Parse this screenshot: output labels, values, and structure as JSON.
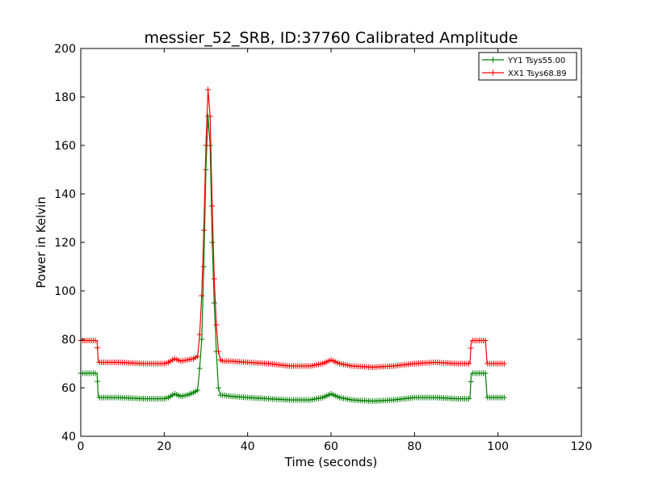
{
  "chart_data": {
    "type": "line",
    "title": "messier_52_SRB, ID:37760 Calibrated Amplitude",
    "xlabel": "Time (seconds)",
    "ylabel": "Power in Kelvin",
    "xlim": [
      0,
      120
    ],
    "ylim": [
      40,
      200
    ],
    "xticks": [
      0,
      20,
      40,
      60,
      80,
      100,
      120
    ],
    "yticks": [
      40,
      60,
      80,
      100,
      120,
      140,
      160,
      180,
      200
    ],
    "grid": false,
    "legend_position": "top-right",
    "marker": "+",
    "series": [
      {
        "name": "YY1 Tsys55.00",
        "color": "#008000",
        "x": [
          0,
          3.9,
          4.2,
          9,
          15,
          20,
          21,
          22.5,
          24,
          25.5,
          27,
          28,
          28.5,
          29,
          29.5,
          30,
          30.5,
          31,
          31.5,
          32,
          32.5,
          33,
          33.5,
          34,
          36,
          40,
          45,
          50,
          55,
          58,
          60,
          62,
          65,
          70,
          75,
          80,
          85,
          90,
          93.3,
          93.6,
          97,
          97.4,
          101.5
        ],
        "y": [
          66,
          66,
          56,
          56,
          55.5,
          55.5,
          56,
          57.5,
          56.5,
          57,
          58,
          59,
          68,
          80,
          110,
          150,
          172,
          160,
          120,
          95,
          75,
          60,
          57,
          57,
          56.5,
          56,
          55.5,
          55,
          55,
          56,
          57.5,
          56,
          55,
          54.5,
          55,
          56,
          56,
          55.5,
          55.5,
          66,
          66,
          56,
          56
        ]
      },
      {
        "name": "XX1 Tsys68.89",
        "color": "#ff0000",
        "x": [
          0,
          3.9,
          4.2,
          9,
          15,
          20,
          21,
          22.5,
          24,
          25.5,
          27,
          28,
          28.5,
          29,
          29.5,
          30,
          30.5,
          31,
          31.5,
          32,
          32.5,
          33,
          33.5,
          34,
          36,
          40,
          45,
          50,
          55,
          58,
          60,
          62,
          65,
          70,
          75,
          80,
          85,
          90,
          93.3,
          93.6,
          97,
          97.4,
          101.5
        ],
        "y": [
          79.5,
          79.5,
          70.5,
          70.5,
          70,
          70,
          70.5,
          72,
          71,
          71.5,
          72,
          73,
          82,
          98,
          125,
          160,
          183,
          172,
          135,
          105,
          86,
          75,
          71.5,
          71,
          71,
          70.5,
          70,
          69,
          69,
          70,
          71.5,
          70,
          69,
          68.5,
          69,
          70,
          70.5,
          70,
          70,
          79.5,
          79.5,
          70,
          70
        ]
      }
    ]
  }
}
